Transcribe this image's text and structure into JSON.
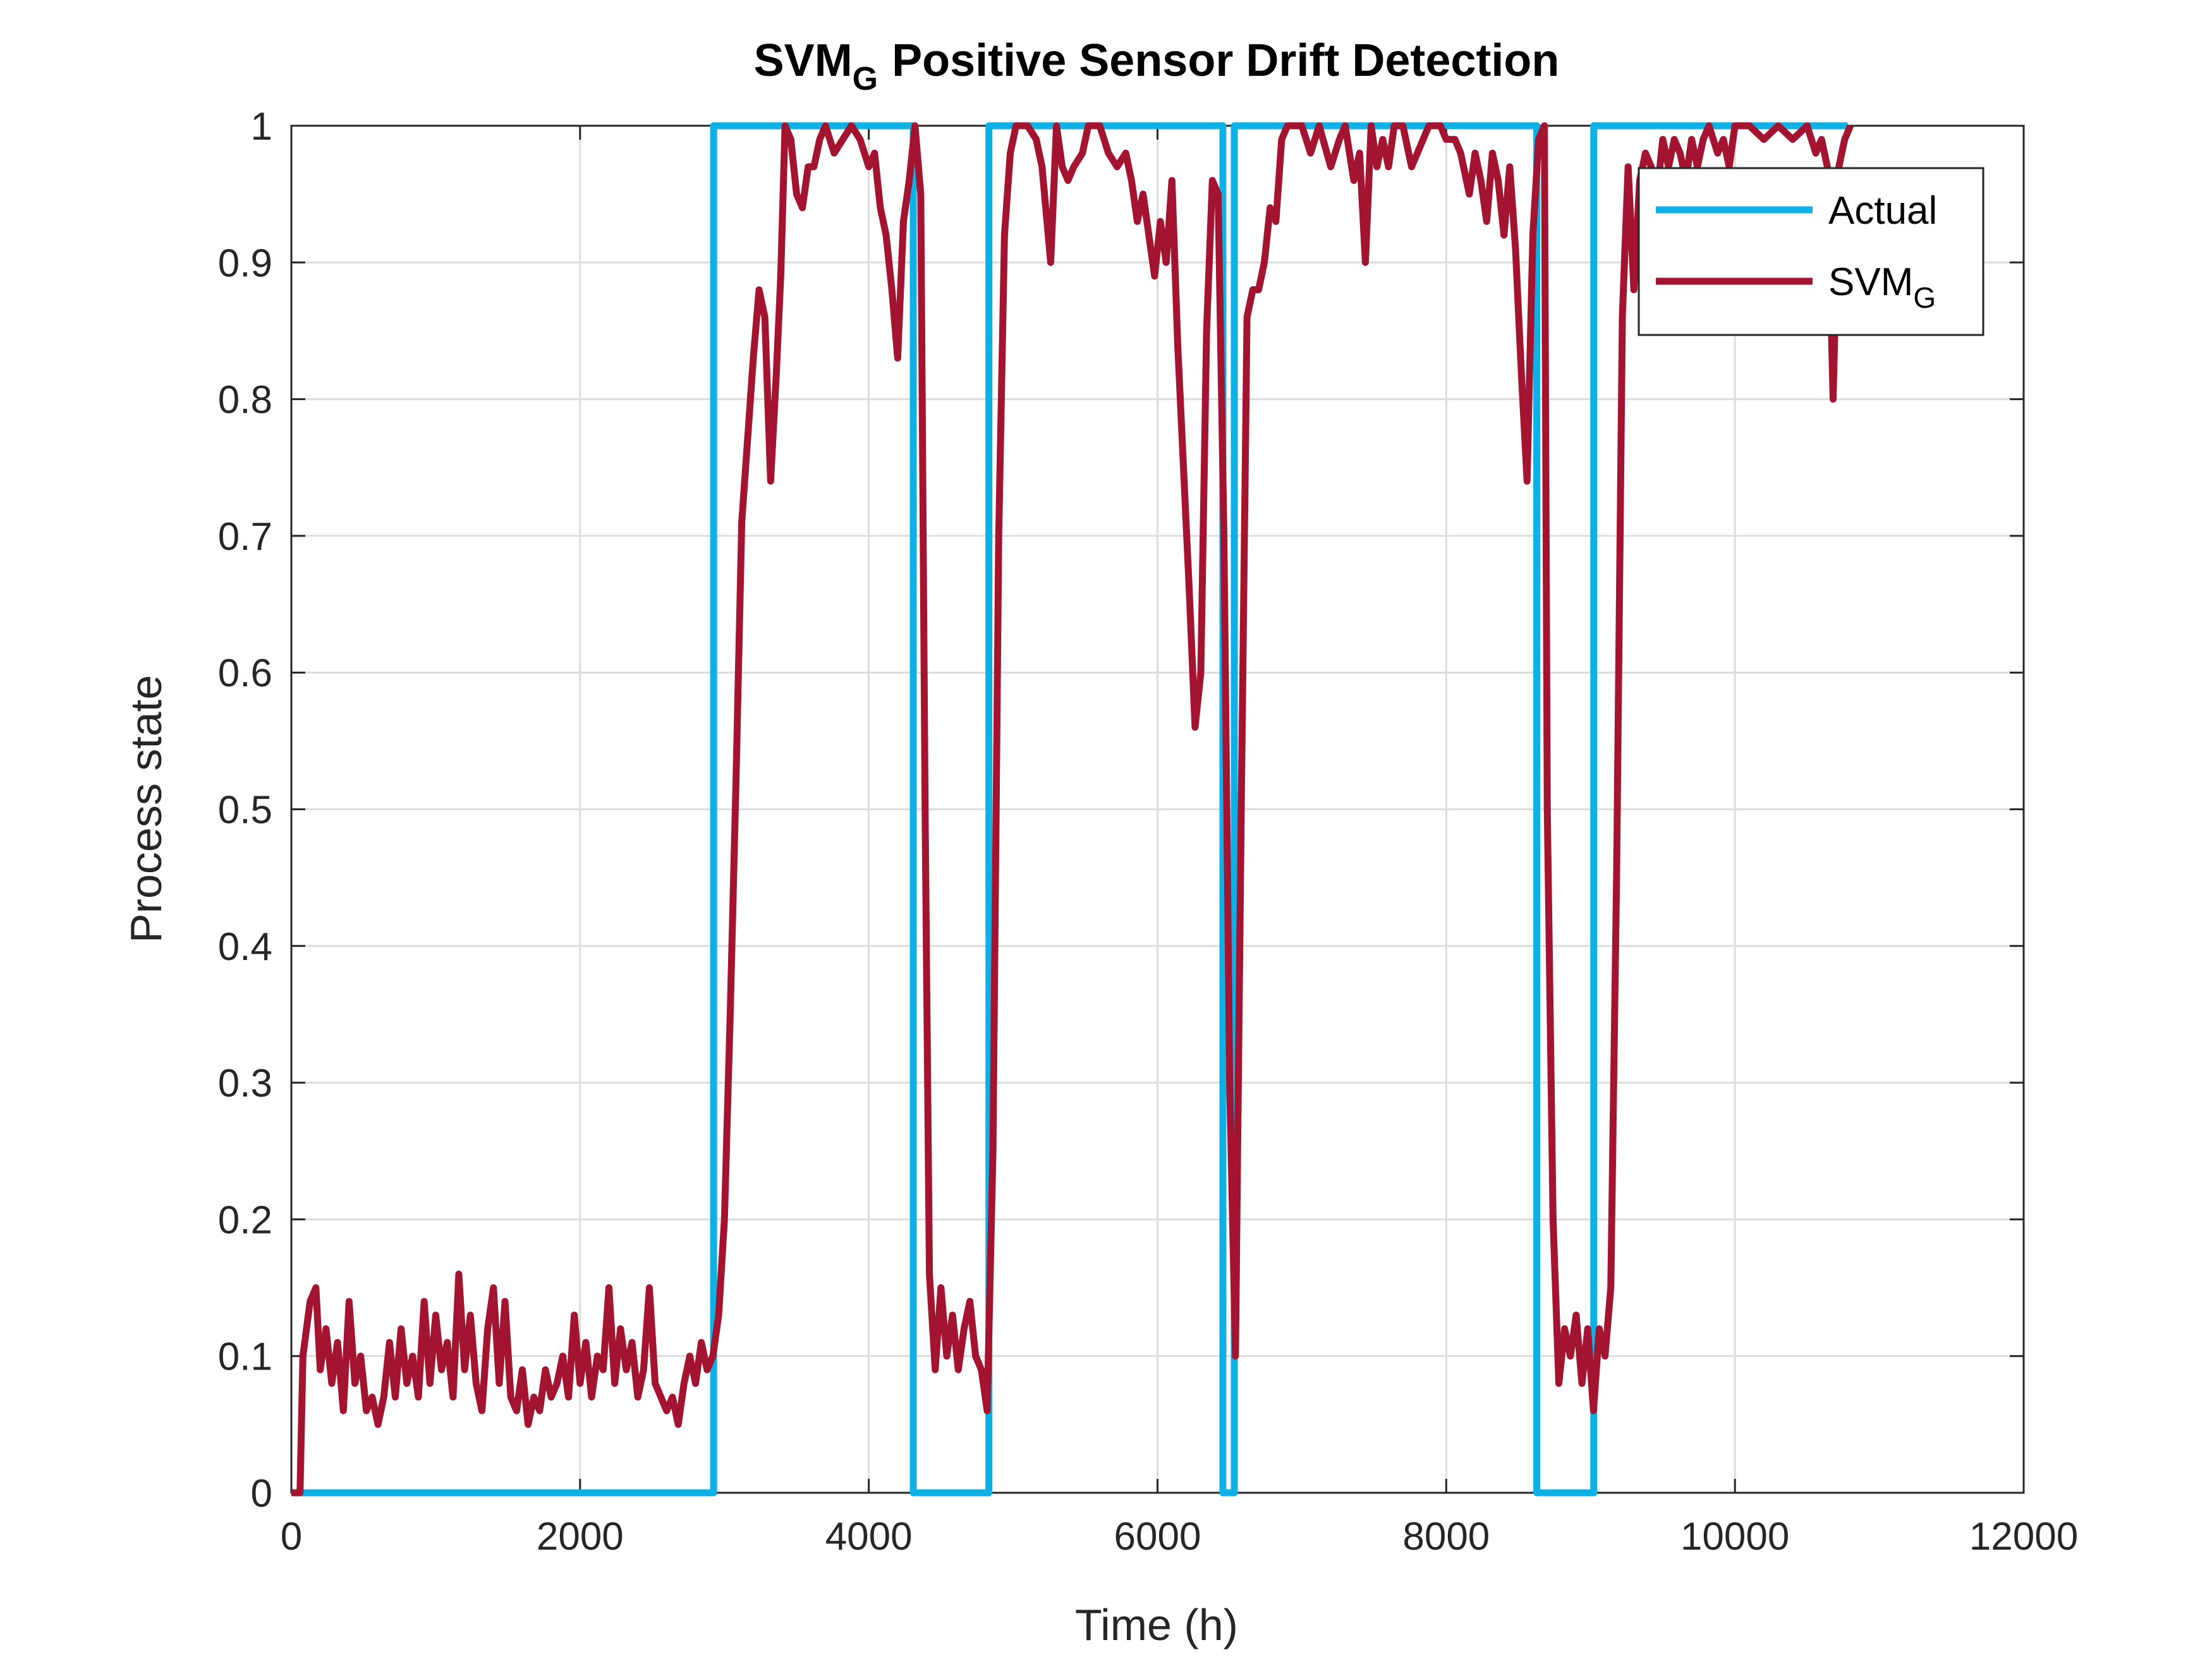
{
  "chart_data": {
    "type": "line",
    "title": {
      "text": "SVM",
      "subscript": "G",
      "suffix": "Positive Sensor Drift Detection"
    },
    "xlabel": "Time (h)",
    "ylabel": "Process state",
    "xlim": [
      0,
      12000
    ],
    "xticks": [
      0,
      2000,
      4000,
      6000,
      8000,
      10000,
      12000
    ],
    "ylim": [
      0,
      1
    ],
    "yticks": [
      0,
      0.1,
      0.2,
      0.3,
      0.4,
      0.5,
      0.6,
      0.7,
      0.8,
      0.9,
      1
    ],
    "grid": true,
    "legend": "upper right",
    "series": [
      {
        "name": "Actual",
        "color": "#0fb0e6",
        "x": [
          0,
          2925,
          2925,
          4308,
          4308,
          4832,
          4832,
          6453,
          6453,
          6532,
          6532,
          8627,
          8627,
          9022,
          9022,
          10780
        ],
        "values": [
          0,
          0,
          1,
          1,
          0,
          0,
          1,
          1,
          0,
          0,
          1,
          1,
          0,
          0,
          1,
          1
        ]
      },
      {
        "name": "SVM",
        "subscript": "G",
        "color": "#a2142f",
        "x": [
          0,
          60,
          80,
          130,
          170,
          200,
          240,
          280,
          320,
          360,
          400,
          440,
          480,
          520,
          560,
          600,
          640,
          680,
          720,
          760,
          800,
          840,
          880,
          920,
          960,
          1000,
          1040,
          1080,
          1120,
          1160,
          1200,
          1240,
          1280,
          1320,
          1360,
          1400,
          1440,
          1480,
          1520,
          1560,
          1600,
          1640,
          1680,
          1720,
          1760,
          1800,
          1840,
          1880,
          1920,
          1960,
          2000,
          2040,
          2080,
          2120,
          2160,
          2200,
          2240,
          2280,
          2320,
          2360,
          2400,
          2440,
          2480,
          2520,
          2560,
          2600,
          2640,
          2680,
          2720,
          2760,
          2800,
          2840,
          2880,
          2920,
          2960,
          3000,
          3040,
          3080,
          3120,
          3160,
          3200,
          3240,
          3280,
          3320,
          3360,
          3390,
          3420,
          3460,
          3500,
          3540,
          3580,
          3620,
          3660,
          3700,
          3760,
          3820,
          3880,
          3940,
          4000,
          4040,
          4080,
          4120,
          4160,
          4200,
          4240,
          4280,
          4320,
          4360,
          4390,
          4420,
          4460,
          4500,
          4540,
          4580,
          4620,
          4660,
          4700,
          4740,
          4780,
          4820,
          4860,
          4900,
          4940,
          4980,
          5020,
          5100,
          5160,
          5200,
          5260,
          5300,
          5340,
          5380,
          5420,
          5480,
          5520,
          5600,
          5660,
          5720,
          5780,
          5820,
          5860,
          5900,
          5940,
          5980,
          6020,
          6060,
          6100,
          6140,
          6180,
          6220,
          6260,
          6300,
          6340,
          6380,
          6420,
          6460,
          6500,
          6540,
          6580,
          6620,
          6660,
          6700,
          6740,
          6780,
          6820,
          6860,
          6900,
          7000,
          7060,
          7120,
          7200,
          7260,
          7300,
          7360,
          7400,
          7440,
          7480,
          7520,
          7560,
          7600,
          7640,
          7700,
          7760,
          7800,
          7840,
          7880,
          7960,
          8000,
          8060,
          8100,
          8160,
          8200,
          8240,
          8280,
          8320,
          8360,
          8400,
          8440,
          8480,
          8520,
          8560,
          8600,
          8640,
          8680,
          8700,
          8740,
          8780,
          8820,
          8860,
          8900,
          8940,
          8980,
          9020,
          9060,
          9100,
          9140,
          9180,
          9220,
          9260,
          9300,
          9340,
          9380,
          9420,
          9460,
          9500,
          9540,
          9580,
          9620,
          9660,
          9700,
          9740,
          9780,
          9820,
          9880,
          9920,
          9960,
          10000,
          10100,
          10200,
          10300,
          10400,
          10500,
          10560,
          10600,
          10640,
          10680,
          10720,
          10760,
          10800
        ],
        "values": [
          0,
          0,
          0.1,
          0.14,
          0.15,
          0.09,
          0.12,
          0.08,
          0.11,
          0.06,
          0.14,
          0.08,
          0.1,
          0.06,
          0.07,
          0.05,
          0.07,
          0.11,
          0.07,
          0.12,
          0.08,
          0.1,
          0.07,
          0.14,
          0.08,
          0.13,
          0.09,
          0.11,
          0.07,
          0.16,
          0.09,
          0.13,
          0.08,
          0.06,
          0.12,
          0.15,
          0.08,
          0.14,
          0.07,
          0.06,
          0.09,
          0.05,
          0.07,
          0.06,
          0.09,
          0.07,
          0.08,
          0.1,
          0.07,
          0.13,
          0.08,
          0.11,
          0.07,
          0.1,
          0.09,
          0.15,
          0.08,
          0.12,
          0.09,
          0.11,
          0.07,
          0.09,
          0.15,
          0.08,
          0.07,
          0.06,
          0.07,
          0.05,
          0.08,
          0.1,
          0.08,
          0.11,
          0.09,
          0.1,
          0.13,
          0.2,
          0.35,
          0.52,
          0.71,
          0.77,
          0.83,
          0.88,
          0.86,
          0.74,
          0.82,
          0.89,
          1.0,
          0.99,
          0.95,
          0.94,
          0.97,
          0.97,
          0.99,
          1.0,
          0.98,
          0.99,
          1.0,
          0.99,
          0.97,
          0.98,
          0.94,
          0.92,
          0.88,
          0.83,
          0.93,
          0.96,
          1.0,
          0.95,
          0.5,
          0.16,
          0.09,
          0.15,
          0.1,
          0.13,
          0.09,
          0.12,
          0.14,
          0.1,
          0.09,
          0.06,
          0.25,
          0.7,
          0.92,
          0.98,
          1.0,
          1.0,
          0.99,
          0.97,
          0.9,
          1.0,
          0.97,
          0.96,
          0.97,
          0.98,
          1.0,
          1.0,
          0.98,
          0.97,
          0.98,
          0.96,
          0.93,
          0.95,
          0.92,
          0.89,
          0.93,
          0.9,
          0.96,
          0.84,
          0.75,
          0.66,
          0.56,
          0.6,
          0.85,
          0.96,
          0.95,
          0.7,
          0.3,
          0.1,
          0.5,
          0.86,
          0.88,
          0.88,
          0.9,
          0.94,
          0.93,
          0.99,
          1.0,
          1.0,
          0.98,
          1.0,
          0.97,
          0.99,
          1.0,
          0.96,
          0.98,
          0.9,
          1.0,
          0.97,
          0.99,
          0.97,
          1.0,
          1.0,
          0.97,
          0.98,
          0.99,
          1.0,
          1.0,
          0.99,
          0.99,
          0.98,
          0.95,
          0.98,
          0.96,
          0.93,
          0.98,
          0.96,
          0.92,
          0.97,
          0.91,
          0.82,
          0.74,
          0.92,
          0.99,
          1.0,
          0.5,
          0.2,
          0.08,
          0.12,
          0.1,
          0.13,
          0.08,
          0.12,
          0.06,
          0.12,
          0.1,
          0.15,
          0.45,
          0.86,
          0.97,
          0.88,
          0.96,
          0.98,
          0.97,
          0.95,
          0.99,
          0.97,
          0.99,
          0.98,
          0.96,
          0.99,
          0.97,
          0.99,
          1.0,
          0.98,
          0.99,
          0.97,
          1.0,
          1.0,
          0.99,
          1.0,
          0.99,
          1.0,
          0.98,
          0.99,
          0.97,
          0.8,
          0.97,
          0.99,
          1.0
        ]
      }
    ]
  }
}
